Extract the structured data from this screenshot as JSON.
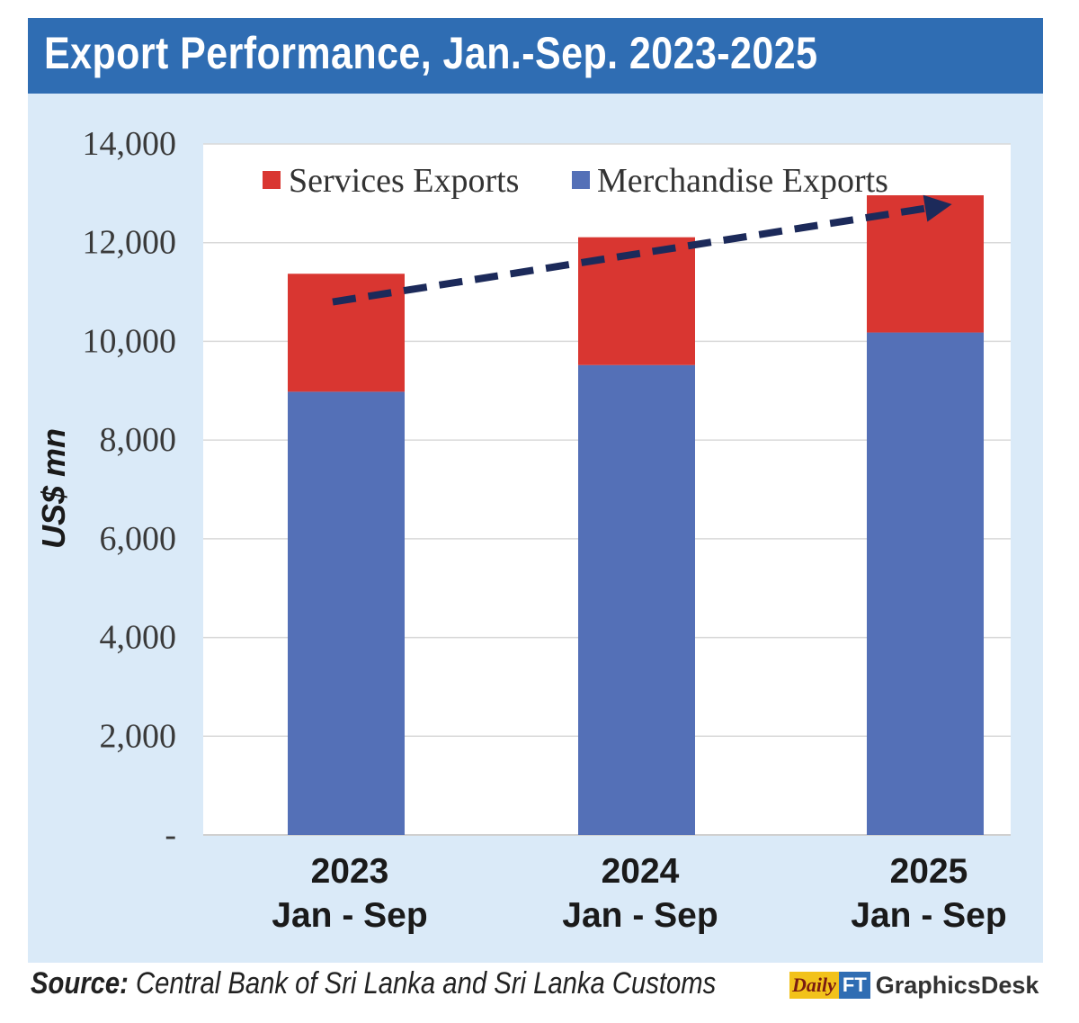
{
  "title": "Export Performance, Jan.-Sep. 2023-2025",
  "colors": {
    "title_bar": "#2f6db3",
    "panel_bg": "#daeaf8",
    "services": "#d93631",
    "merchandise": "#5470b7",
    "trend_arrow": "#1c2a5a",
    "gridline": "#f2f2f2"
  },
  "chart_data": {
    "type": "bar",
    "stacked": true,
    "categories": [
      {
        "year": "2023",
        "period": "Jan - Sep"
      },
      {
        "year": "2024",
        "period": "Jan - Sep"
      },
      {
        "year": "2025",
        "period": "Jan - Sep"
      }
    ],
    "series": [
      {
        "name": "Merchandise Exports",
        "values": [
          8980,
          9520,
          10180
        ]
      },
      {
        "name": "Services Exports",
        "values": [
          2390,
          2590,
          2780
        ]
      }
    ],
    "legend": [
      "Services Exports",
      "Merchandise Exports"
    ],
    "legend_placement": "top",
    "ylabel": "US$ mn",
    "ylim": [
      0,
      14000
    ],
    "yticks": [
      0,
      2000,
      4000,
      6000,
      8000,
      10000,
      12000,
      14000
    ],
    "ytick_labels": [
      "-",
      "2,000",
      "4,000",
      "6,000",
      "8,000",
      "10,000",
      "12,000",
      "14,000"
    ],
    "grid": true,
    "annotations": [
      {
        "type": "dashed-arrow",
        "from_category": "2023",
        "from_value": 10800,
        "to_category": "2025",
        "to_value": 12700
      }
    ]
  },
  "source": {
    "label": "Source:",
    "text": " Central Bank of Sri Lanka and Sri Lanka Customs"
  },
  "logo": {
    "daily": "Daily",
    "ft": "FT",
    "desk": "GraphicsDesk"
  }
}
